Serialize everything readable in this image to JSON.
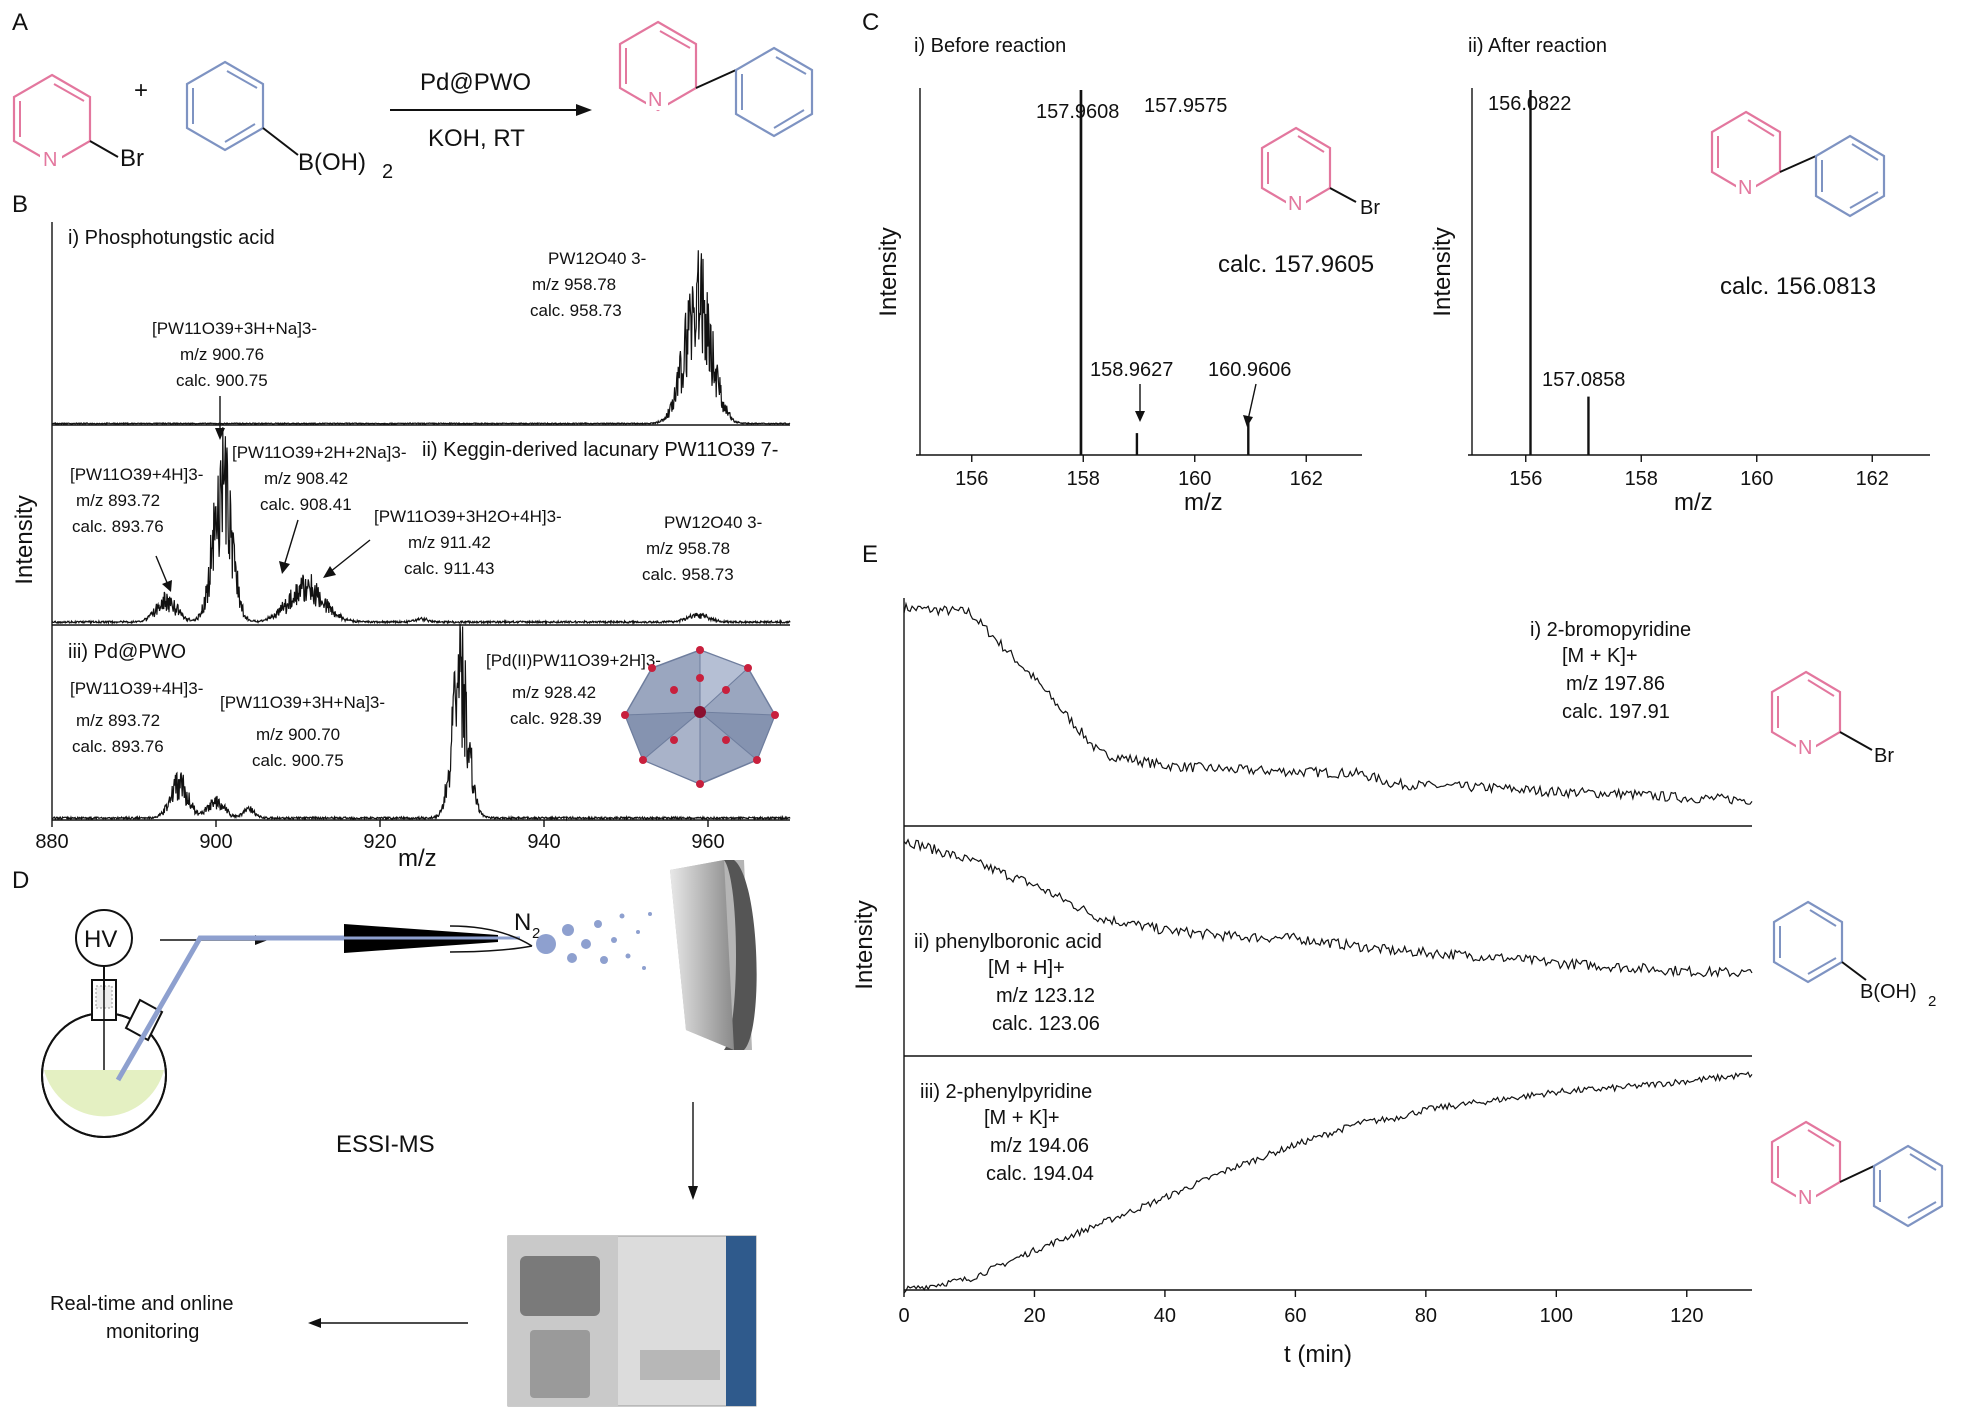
{
  "panels": {
    "A": "A",
    "B": "B",
    "C": "C",
    "D": "D",
    "E": "E"
  },
  "A": {
    "reactant1_sub": "Br",
    "plus": "+",
    "reactant2_sub": "B(OH)",
    "reactant2_sub_num": "2",
    "reagent_top": "Pd@PWO",
    "reagent_bottom": "KOH, RT",
    "n_label": "N",
    "colors": {
      "pyridine": "#e3779e",
      "benzene": "#7e93c2"
    }
  },
  "B": {
    "ylabel": "Intensity",
    "xlabel": "m/z",
    "s1": {
      "title": "i) Phosphotungstic acid",
      "a1": {
        "l1": "PW12O40 3-",
        "l2": "m/z 958.78",
        "l3": "calc. 958.73"
      },
      "a2": {
        "l1": "[PW11O39+3H+Na]3-",
        "l2": "m/z 900.76",
        "l3": "calc. 900.75"
      }
    },
    "s2": {
      "title": "ii) Keggin-derived lacunary PW11O39 7-",
      "a1": {
        "l1": "[PW11O39+4H]3-",
        "l2": "m/z 893.72",
        "l3": "calc. 893.76"
      },
      "a2": {
        "l1": "[PW11O39+2H+2Na]3-",
        "l2": "m/z 908.42",
        "l3": "calc. 908.41"
      },
      "a3": {
        "l1": "[PW11O39+3H2O+4H]3-",
        "l2": "m/z 911.42",
        "l3": "calc. 911.43"
      },
      "a4": {
        "l1": "PW12O40 3-",
        "l2": "m/z 958.78",
        "l3": "calc. 958.73"
      }
    },
    "s3": {
      "title": "iii) Pd@PWO",
      "a1": {
        "l1": "[PW11O39+4H]3-",
        "l2": "m/z 893.72",
        "l3": "calc. 893.76"
      },
      "a2": {
        "l1": "[PW11O39+3H+Na]3-",
        "l2": "m/z 900.70",
        "l3": "calc. 900.75"
      },
      "a3": {
        "l1": "[Pd(II)PW11O39+2H]3-",
        "l2": "m/z 928.42",
        "l3": "calc. 928.39"
      }
    },
    "xticks": [
      "880",
      "900",
      "920",
      "940",
      "960"
    ]
  },
  "C": {
    "left": {
      "title": "i) Before reaction",
      "ylabel": "Intensity",
      "xlabel": "m/z",
      "peaks": [
        "157.9608",
        "157.9575",
        "158.9627",
        "160.9606"
      ],
      "calc": "calc. 157.9605",
      "br": "Br",
      "xticks": [
        "156",
        "158",
        "160",
        "162"
      ]
    },
    "right": {
      "title": "ii) After reaction",
      "ylabel": "Intensity",
      "xlabel": "m/z",
      "peaks": [
        "156.0822",
        "157.0858"
      ],
      "calc": "calc. 156.0813",
      "xticks": [
        "156",
        "158",
        "160",
        "162"
      ]
    }
  },
  "D": {
    "hv": "HV",
    "n2": "N",
    "n2_sub": "2",
    "essi": "ESSI-MS",
    "monitor1": "Real-time and online",
    "monitor2": "monitoring"
  },
  "E": {
    "ylabel": "Intensity",
    "xlabel": "t (min)",
    "xticks": [
      "0",
      "20",
      "40",
      "60",
      "80",
      "100",
      "120"
    ],
    "s1": {
      "l1": "i) 2-bromopyridine",
      "l2": "[M + K]+",
      "l3": "m/z 197.86",
      "l4": "calc. 197.91",
      "sub": "Br"
    },
    "s2": {
      "l1": "ii) phenylboronic acid",
      "l2": "[M + H]+",
      "l3": "m/z 123.12",
      "l4": "calc. 123.06",
      "sub": "B(OH)",
      "sub2": "2"
    },
    "s3": {
      "l1": "iii) 2-phenylpyridine",
      "l2": "[M + K]+",
      "l3": "m/z 194.06",
      "l4": "calc. 194.04"
    }
  },
  "chart_data": [
    {
      "panel": "C-i",
      "type": "line",
      "title": "i) Before reaction",
      "xlabel": "m/z",
      "ylabel": "Intensity",
      "xlim": [
        155,
        163
      ],
      "x": [
        157.9608,
        157.9575,
        158.9627,
        160.9606
      ],
      "values": [
        100,
        100,
        6,
        10
      ]
    },
    {
      "panel": "C-ii",
      "type": "line",
      "title": "ii) After reaction",
      "xlabel": "m/z",
      "ylabel": "Intensity",
      "xlim": [
        155,
        163
      ],
      "x": [
        156.0822,
        157.0858
      ],
      "values": [
        100,
        16
      ]
    },
    {
      "panel": "E",
      "type": "line",
      "xlabel": "t (min)",
      "ylabel": "Intensity",
      "xlim": [
        0,
        130
      ],
      "x": [
        0,
        10,
        20,
        30,
        40,
        50,
        60,
        70,
        75,
        80,
        90,
        100,
        110,
        120,
        130
      ],
      "series": [
        {
          "name": "i) 2-bromopyridine",
          "values": [
            1.0,
            0.98,
            0.65,
            0.28,
            0.22,
            0.2,
            0.19,
            0.18,
            0.13,
            0.12,
            0.11,
            0.09,
            0.08,
            0.06,
            0.05
          ]
        },
        {
          "name": "ii) phenylboronic acid",
          "values": [
            1.0,
            0.9,
            0.78,
            0.62,
            0.56,
            0.53,
            0.52,
            0.48,
            0.46,
            0.45,
            0.43,
            0.4,
            0.38,
            0.36,
            0.35
          ]
        },
        {
          "name": "iii) 2-phenylpyridine",
          "values": [
            0.0,
            0.05,
            0.18,
            0.3,
            0.42,
            0.55,
            0.66,
            0.76,
            0.78,
            0.82,
            0.86,
            0.9,
            0.92,
            0.95,
            0.98
          ]
        }
      ]
    }
  ]
}
